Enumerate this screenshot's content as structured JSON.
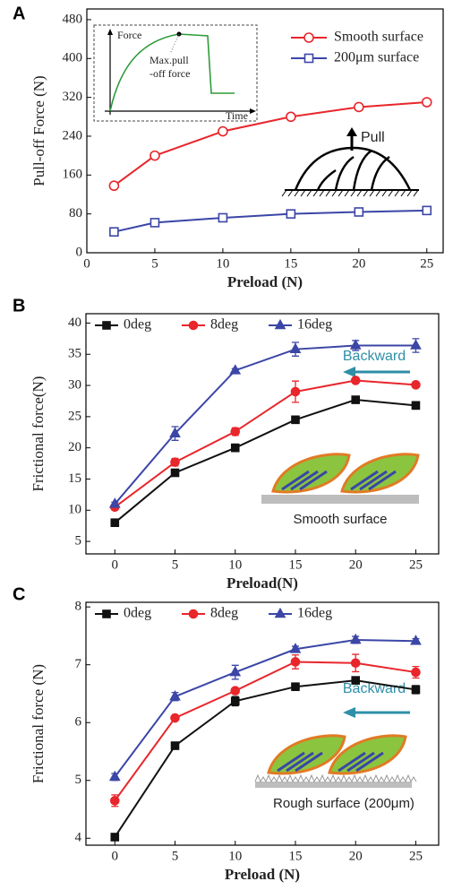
{
  "chart_data": [
    {
      "type": "line",
      "label": "A",
      "x_label": "Preload (N)",
      "y_label": "Pull-off Force (N)",
      "xlim": [
        0,
        26.2
      ],
      "xticks": [
        0,
        5,
        10,
        15,
        20,
        25
      ],
      "ylim": [
        0,
        502
      ],
      "yticks": [
        0,
        80,
        160,
        240,
        320,
        400,
        480
      ],
      "legend": "top-right",
      "annotations": [
        "Force",
        "Time",
        "Max.pull",
        "-off force",
        "Pull"
      ],
      "x": [
        2,
        5,
        10,
        15,
        20,
        25
      ],
      "series": [
        {
          "name": "Smooth surface",
          "color": "#e8262b",
          "marker": "circle-open",
          "values": [
            138,
            200,
            250,
            280,
            300,
            310
          ]
        },
        {
          "name": "200μm surface",
          "color": "#3b46a6",
          "marker": "square-open",
          "values": [
            43,
            62,
            72,
            80,
            84,
            87
          ]
        }
      ]
    },
    {
      "type": "line",
      "label": "B",
      "x_label": "Preload(N)",
      "y_label": "Frictional force(N)",
      "xlim": [
        -2.4,
        26.9
      ],
      "xticks": [
        0,
        5,
        10,
        15,
        20,
        25
      ],
      "ylim": [
        3,
        41.5
      ],
      "yticks": [
        5,
        10,
        15,
        20,
        25,
        30,
        35,
        40
      ],
      "legend": "top-left",
      "annotations": [
        "Backward",
        "Smooth surface"
      ],
      "x": [
        0,
        5,
        10,
        15,
        20,
        25
      ],
      "series": [
        {
          "name": "0deg",
          "color": "#111111",
          "marker": "square",
          "values": [
            8,
            16,
            20,
            24.5,
            27.7,
            26.8
          ],
          "errors": [
            0.3,
            0.3,
            0.6,
            0.3,
            0.3,
            0.6
          ]
        },
        {
          "name": "8deg",
          "color": "#e8262b",
          "marker": "circle",
          "values": [
            10.5,
            17.7,
            22.6,
            29,
            30.8,
            30.1
          ],
          "errors": [
            0.3,
            0.6,
            0.6,
            1.7,
            0.3,
            0.3
          ]
        },
        {
          "name": "16deg",
          "color": "#3b46a6",
          "marker": "triangle",
          "values": [
            11,
            22.3,
            32.4,
            35.8,
            36.4,
            36.4
          ],
          "errors": [
            0.3,
            1.1,
            0.3,
            1.1,
            0.8,
            1.1
          ]
        }
      ]
    },
    {
      "type": "line",
      "label": "C",
      "x_label": "Preload (N)",
      "y_label": "Frictional force (N)",
      "xlim": [
        -2.4,
        26.9
      ],
      "xticks": [
        0,
        5,
        10,
        15,
        20,
        25
      ],
      "ylim": [
        3.88,
        8.08
      ],
      "yticks": [
        4,
        5,
        6,
        7,
        8
      ],
      "legend": "top-left",
      "annotations": [
        "Backward",
        "Rough surface (200μm)"
      ],
      "x": [
        0,
        5,
        10,
        15,
        20,
        25
      ],
      "series": [
        {
          "name": "0deg",
          "color": "#111111",
          "marker": "square",
          "values": [
            4.02,
            5.6,
            6.37,
            6.62,
            6.73,
            6.57
          ],
          "errors": [
            0.05,
            0.03,
            0.08,
            0.03,
            0.05,
            0.07
          ]
        },
        {
          "name": "8deg",
          "color": "#e8262b",
          "marker": "circle",
          "values": [
            4.65,
            6.08,
            6.55,
            7.05,
            7.03,
            6.87
          ],
          "errors": [
            0.1,
            0.03,
            0.05,
            0.12,
            0.15,
            0.1
          ]
        },
        {
          "name": "16deg",
          "color": "#3b46a6",
          "marker": "triangle",
          "values": [
            5.06,
            6.45,
            6.87,
            7.27,
            7.43,
            7.41
          ],
          "errors": [
            0.06,
            0.07,
            0.12,
            0.05,
            0.06,
            0.04
          ]
        }
      ]
    }
  ]
}
